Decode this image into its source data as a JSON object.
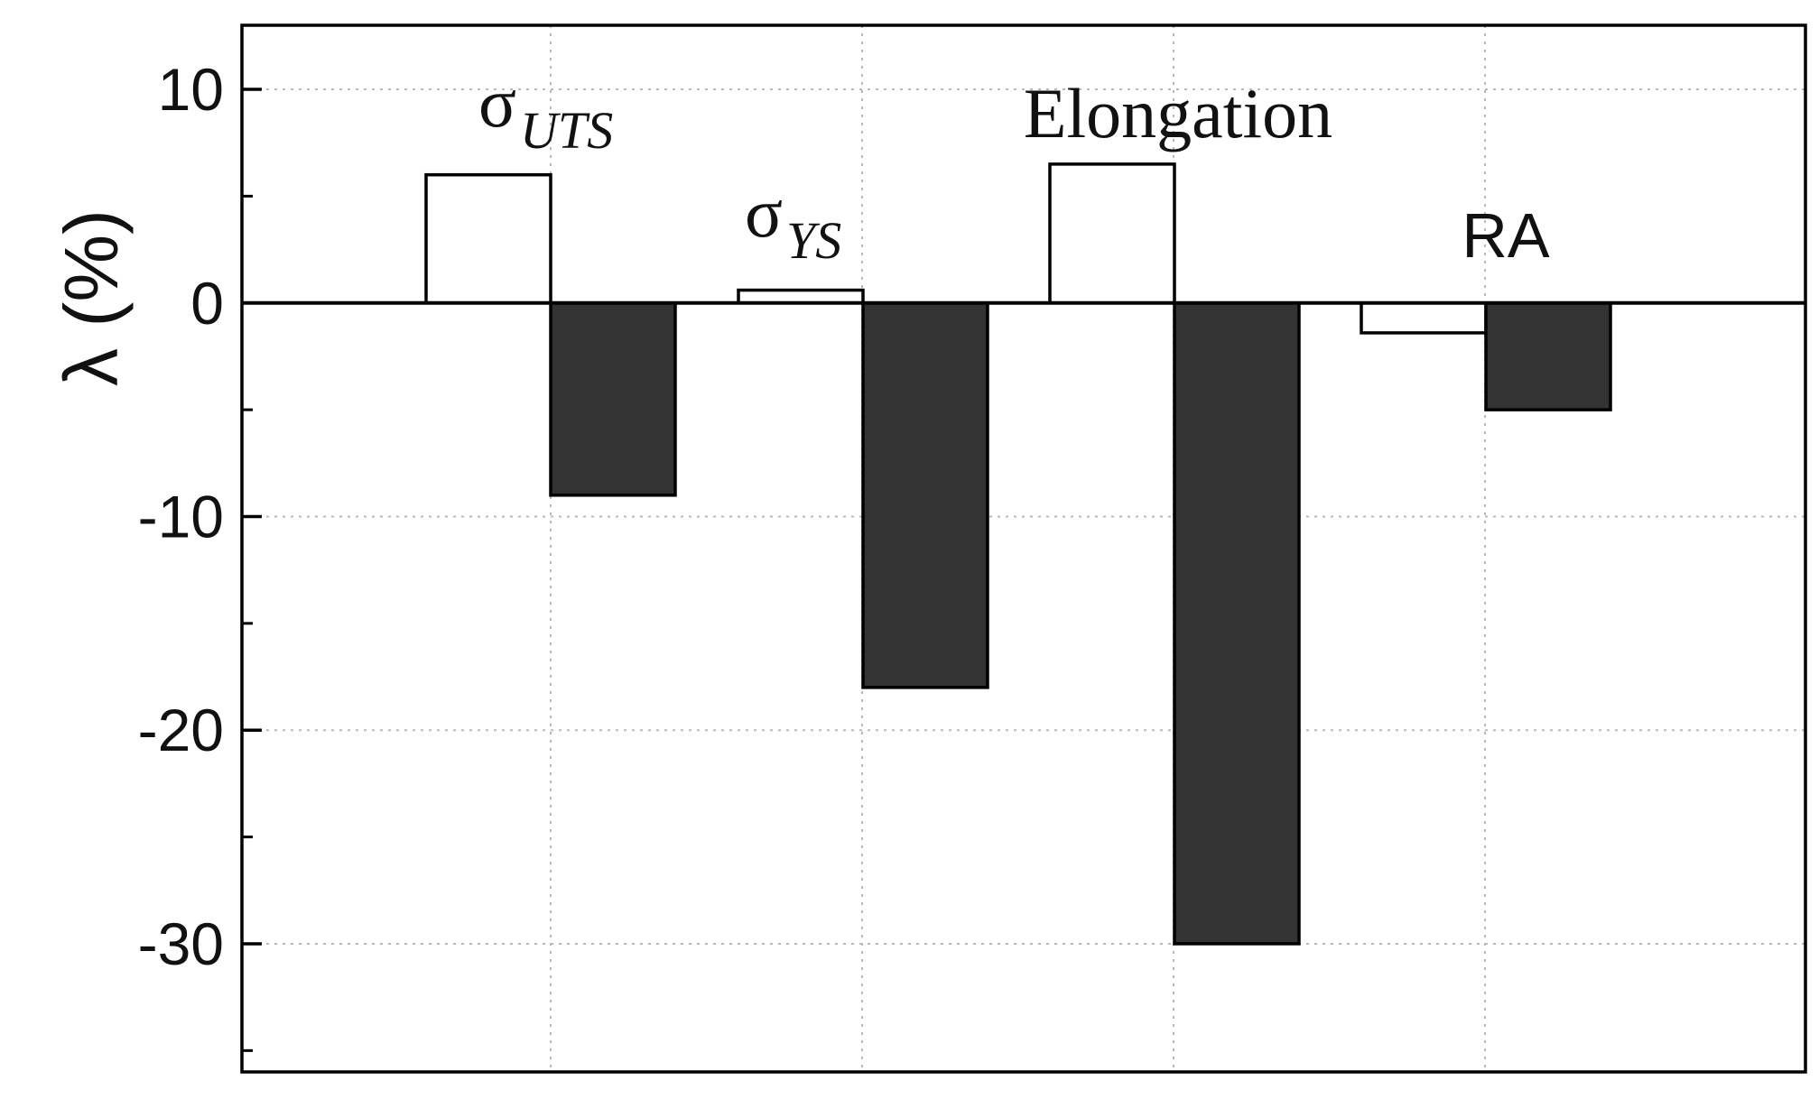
{
  "chart_data": {
    "type": "bar",
    "title": "",
    "xlabel": "",
    "ylabel": "λ (%)",
    "ylim": [
      -36,
      13
    ],
    "yticks": [
      "10",
      "0",
      "-10",
      "-20",
      "-30"
    ],
    "grid": true,
    "categories": [
      {
        "symbol": "σ",
        "subscript": "UTS"
      },
      {
        "symbol": "σ",
        "subscript": "YS"
      },
      {
        "symbol": "Elongation",
        "subscript": ""
      },
      {
        "symbol": "RA",
        "subscript": ""
      }
    ],
    "series": [
      {
        "fill": "#ffffff",
        "values": [
          6,
          0.6,
          6.5,
          -1.4
        ]
      },
      {
        "fill": "#333333",
        "values": [
          -9,
          -18,
          -30,
          -5
        ]
      }
    ]
  }
}
